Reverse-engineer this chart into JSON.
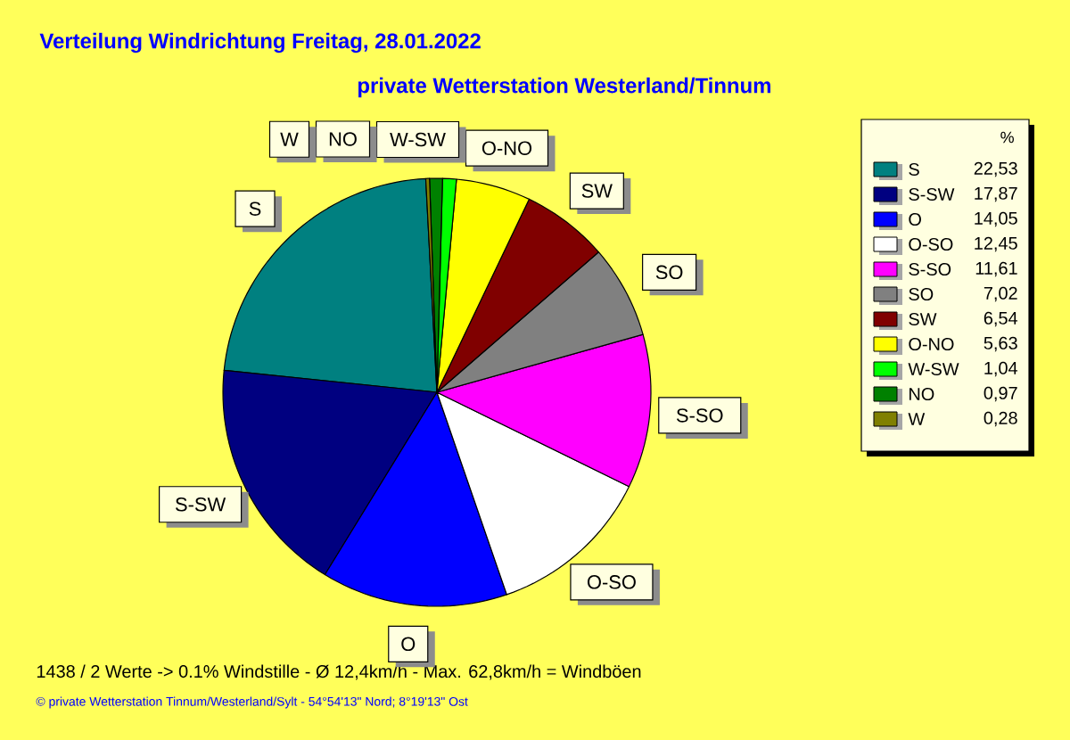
{
  "chart_data": {
    "type": "pie",
    "title": "Verteilung Windrichtung   Freitag, 28.01.2022",
    "subtitle": "private Wetterstation Westerland/Tinnum",
    "legend_title": "%",
    "legend": "right",
    "categories": [
      "S",
      "S-SW",
      "O",
      "O-SO",
      "S-SO",
      "SO",
      "SW",
      "O-NO",
      "W-SW",
      "NO",
      "W"
    ],
    "values": [
      22.53,
      17.87,
      14.05,
      12.45,
      11.61,
      7.02,
      6.54,
      5.63,
      1.04,
      0.97,
      0.28
    ],
    "value_labels": [
      "22,53",
      "17,87",
      "14,05",
      "12,45",
      "11,61",
      "7,02",
      "6,54",
      "5,63",
      "1,04",
      "0,97",
      "0,28"
    ],
    "colors": [
      "#008080",
      "#000080",
      "#0000ff",
      "#ffffff",
      "#ff00ff",
      "#808080",
      "#800000",
      "#ffff00",
      "#00ff00",
      "#008000",
      "#808000"
    ],
    "annotations": [
      "1438 / 2 Werte  -> 0.1% Windstille   -   Ø 12,4km/h  -  Max. 62,8km/h = Windböen",
      "© private Wetterstation Tinnum/Westerland/Sylt   -   54°54'13\" Nord; 8°19'13\" Ost"
    ]
  }
}
